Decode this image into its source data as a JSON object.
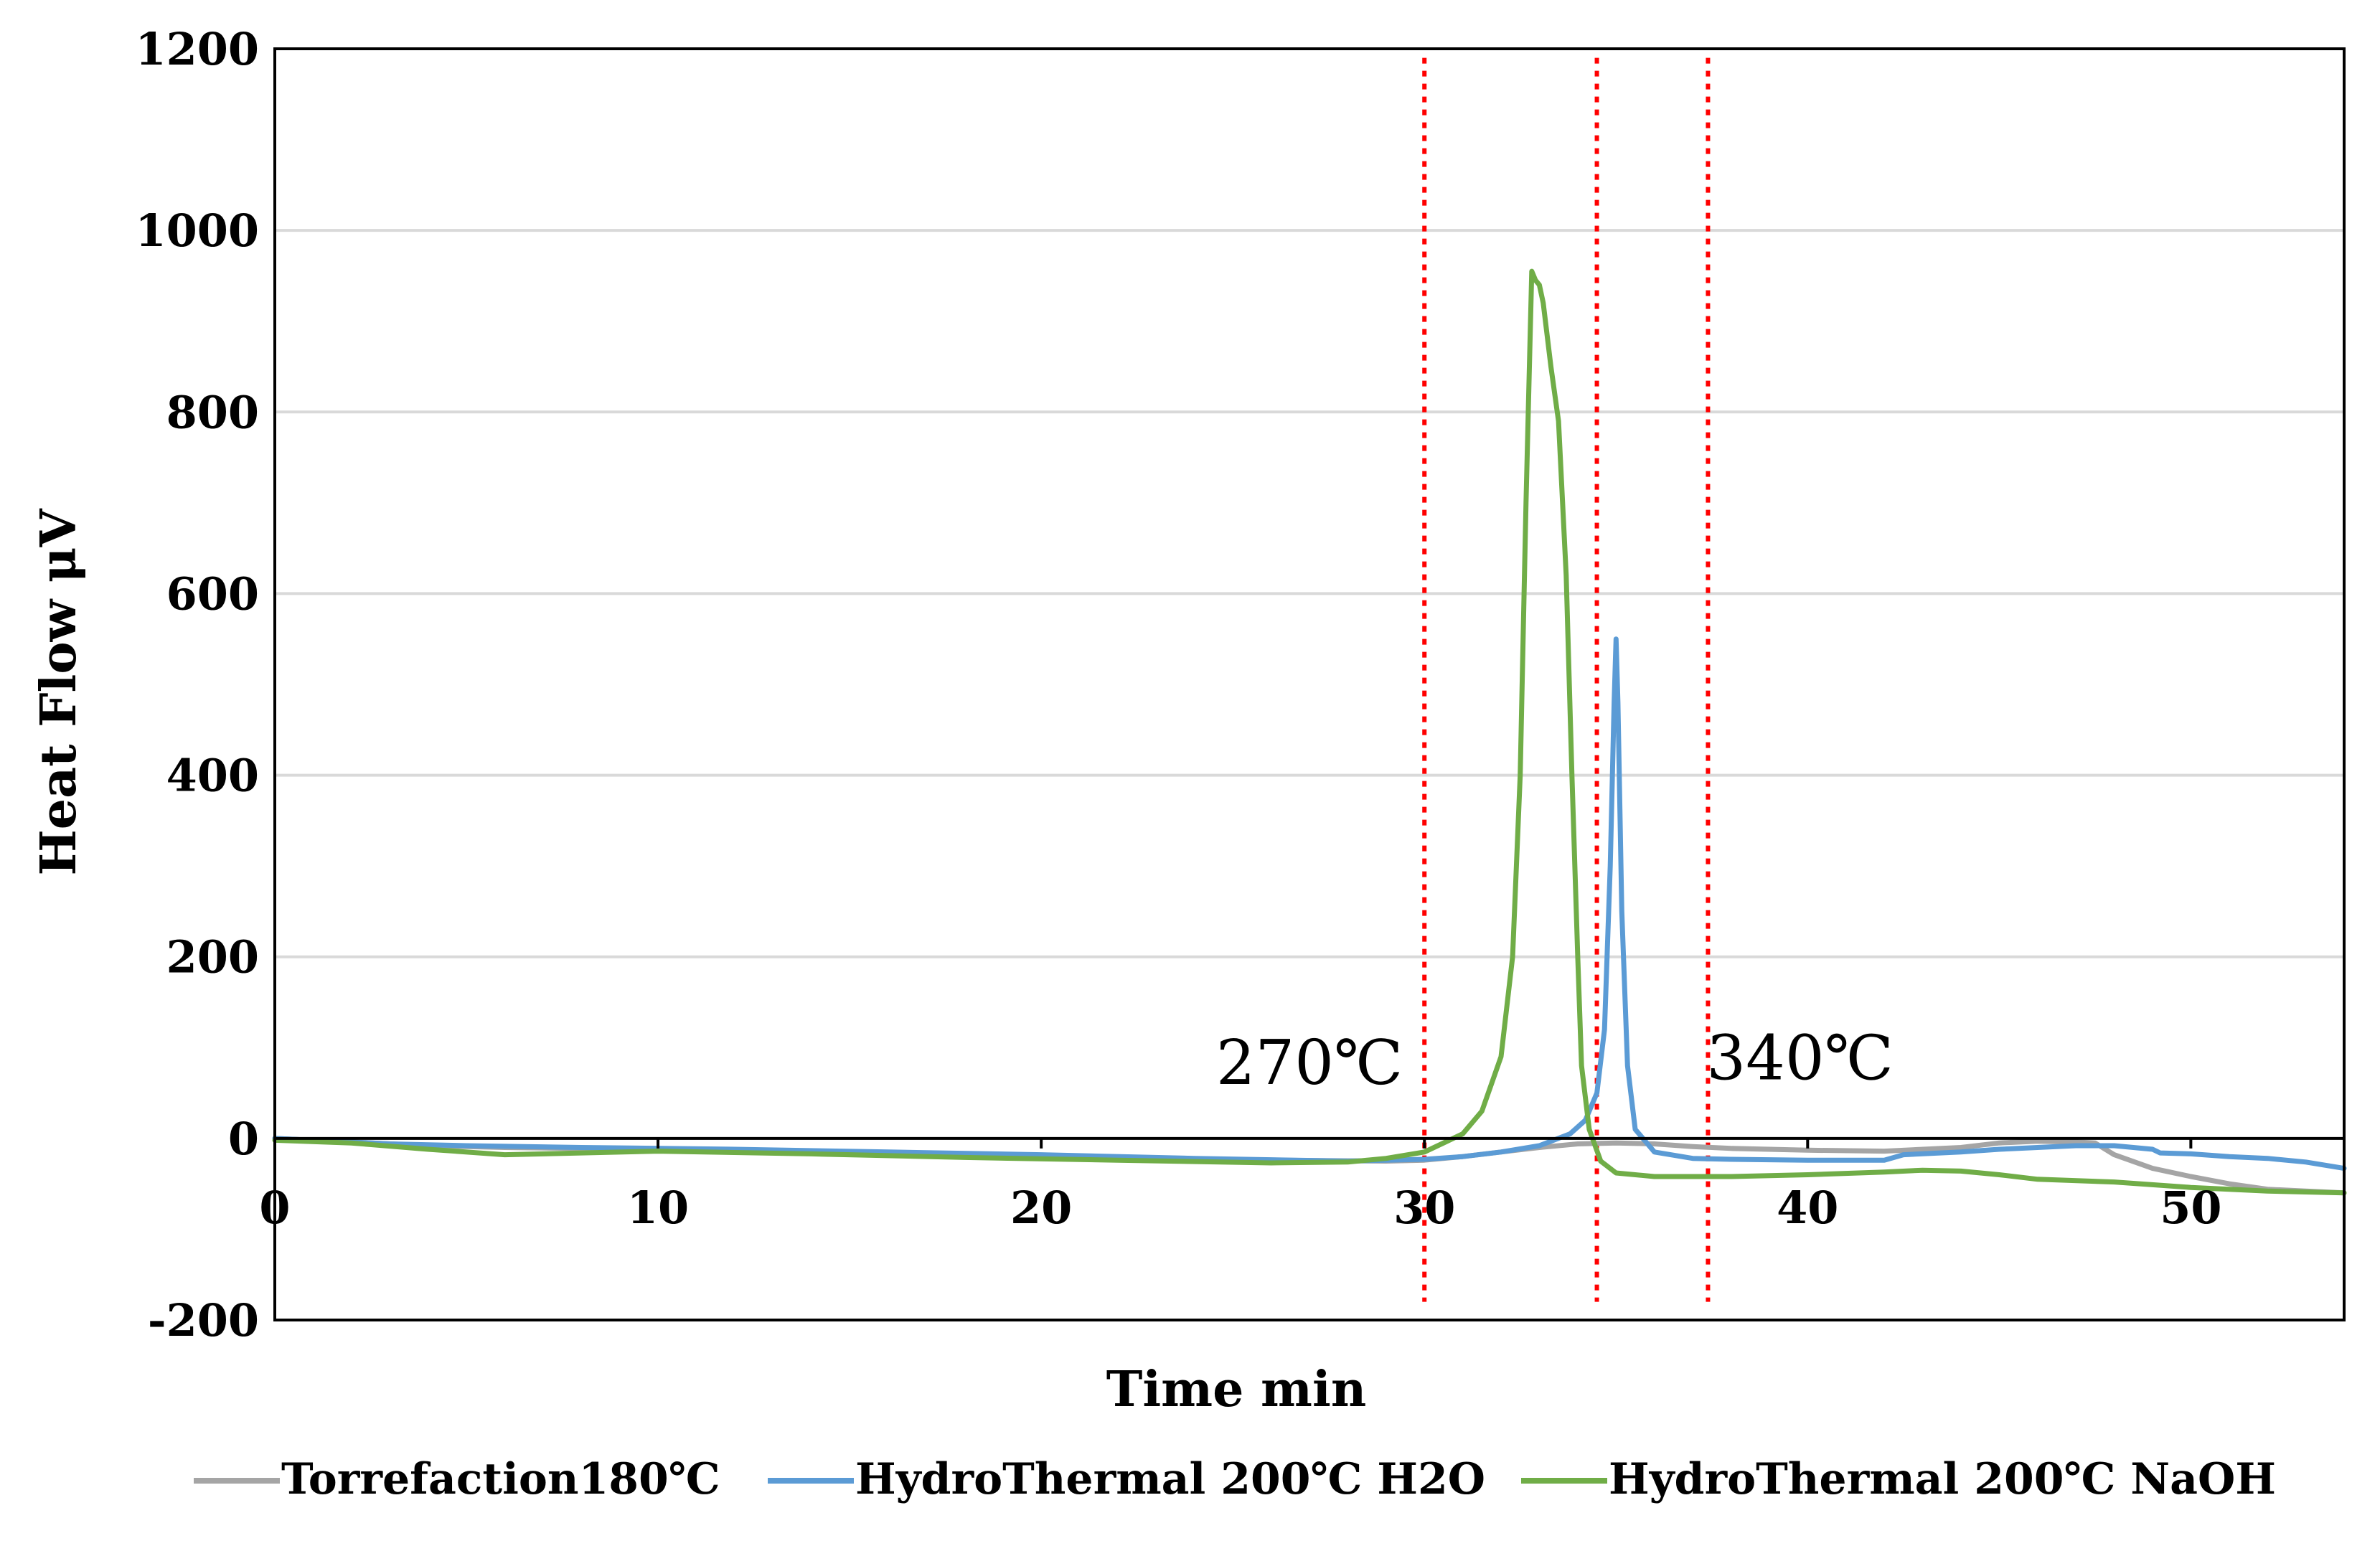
{
  "chart_data": {
    "type": "line",
    "title": "",
    "xlabel": "Time min",
    "ylabel": "Heat Flow μV",
    "xlim": [
      0,
      54
    ],
    "ylim": [
      -200,
      1200
    ],
    "x_ticks": [
      "0",
      "10",
      "20",
      "30",
      "40",
      "50"
    ],
    "y_ticks": [
      "-200",
      "0",
      "200",
      "400",
      "600",
      "800",
      "1000",
      "1200"
    ],
    "grid": "horizontal",
    "legend_position": "bottom",
    "series": [
      {
        "name": "Torrefaction180℃",
        "color": "#a5a5a5",
        "points": [
          [
            0,
            0
          ],
          [
            2,
            -4
          ],
          [
            4,
            -8
          ],
          [
            6,
            -10
          ],
          [
            8,
            -11
          ],
          [
            10,
            -12
          ],
          [
            14,
            -15
          ],
          [
            18,
            -18
          ],
          [
            22,
            -21
          ],
          [
            26,
            -24
          ],
          [
            29,
            -25
          ],
          [
            30,
            -24
          ],
          [
            31,
            -20
          ],
          [
            32,
            -15
          ],
          [
            33,
            -10
          ],
          [
            34,
            -6
          ],
          [
            35,
            -5
          ],
          [
            36,
            -6
          ],
          [
            37,
            -9
          ],
          [
            38,
            -11
          ],
          [
            40,
            -13
          ],
          [
            42,
            -14
          ],
          [
            44,
            -10
          ],
          [
            45,
            -5
          ],
          [
            46,
            -3
          ],
          [
            47,
            -4
          ],
          [
            47.5,
            -5
          ],
          [
            48,
            -18
          ],
          [
            49,
            -33
          ],
          [
            50,
            -42
          ],
          [
            51,
            -50
          ],
          [
            52,
            -56
          ],
          [
            53,
            -58
          ],
          [
            54,
            -60
          ]
        ]
      },
      {
        "name": "HydroThermal 200℃ H2O",
        "color": "#5b9bd5",
        "points": [
          [
            0,
            0
          ],
          [
            1,
            -2
          ],
          [
            2,
            -4
          ],
          [
            3,
            -6
          ],
          [
            5,
            -8
          ],
          [
            8,
            -10
          ],
          [
            12,
            -12
          ],
          [
            16,
            -15
          ],
          [
            20,
            -18
          ],
          [
            24,
            -22
          ],
          [
            28,
            -25
          ],
          [
            30,
            -23
          ],
          [
            31,
            -20
          ],
          [
            32,
            -15
          ],
          [
            33,
            -8
          ],
          [
            33.8,
            5
          ],
          [
            34.2,
            20
          ],
          [
            34.5,
            50
          ],
          [
            34.7,
            120
          ],
          [
            34.85,
            300
          ],
          [
            34.95,
            480
          ],
          [
            35.0,
            550
          ],
          [
            35.05,
            480
          ],
          [
            35.15,
            250
          ],
          [
            35.3,
            80
          ],
          [
            35.5,
            10
          ],
          [
            36,
            -15
          ],
          [
            37,
            -22
          ],
          [
            38,
            -23
          ],
          [
            40,
            -24
          ],
          [
            42,
            -24
          ],
          [
            42.5,
            -18
          ],
          [
            44,
            -15
          ],
          [
            45,
            -12
          ],
          [
            46,
            -10
          ],
          [
            47,
            -8
          ],
          [
            48,
            -8
          ],
          [
            48.5,
            -10
          ],
          [
            49,
            -12
          ],
          [
            49.2,
            -16
          ],
          [
            50,
            -17
          ],
          [
            51,
            -20
          ],
          [
            52,
            -22
          ],
          [
            53,
            -26
          ],
          [
            54,
            -33
          ]
        ]
      },
      {
        "name": "HydroThermal 200℃ NaOH",
        "color": "#70ad47",
        "points": [
          [
            0,
            -2
          ],
          [
            2,
            -5
          ],
          [
            4,
            -12
          ],
          [
            6,
            -18
          ],
          [
            8,
            -16
          ],
          [
            10,
            -14
          ],
          [
            14,
            -17
          ],
          [
            18,
            -21
          ],
          [
            22,
            -24
          ],
          [
            26,
            -27
          ],
          [
            28,
            -26
          ],
          [
            29,
            -22
          ],
          [
            30,
            -15
          ],
          [
            30.5,
            -5
          ],
          [
            31,
            5
          ],
          [
            31.5,
            30
          ],
          [
            32,
            90
          ],
          [
            32.3,
            200
          ],
          [
            32.5,
            400
          ],
          [
            32.65,
            700
          ],
          [
            32.8,
            955
          ],
          [
            32.9,
            945
          ],
          [
            33.0,
            940
          ],
          [
            33.1,
            920
          ],
          [
            33.3,
            850
          ],
          [
            33.5,
            790
          ],
          [
            33.7,
            620
          ],
          [
            33.85,
            400
          ],
          [
            34.0,
            200
          ],
          [
            34.1,
            80
          ],
          [
            34.3,
            10
          ],
          [
            34.6,
            -25
          ],
          [
            35,
            -38
          ],
          [
            36,
            -42
          ],
          [
            38,
            -42
          ],
          [
            40,
            -40
          ],
          [
            42,
            -37
          ],
          [
            43,
            -35
          ],
          [
            44,
            -36
          ],
          [
            45,
            -40
          ],
          [
            46,
            -45
          ],
          [
            48,
            -48
          ],
          [
            50,
            -54
          ],
          [
            52,
            -58
          ],
          [
            54,
            -60
          ]
        ]
      }
    ],
    "reference_lines": [
      {
        "x": 30,
        "color": "#ff0000",
        "style": "dotted"
      },
      {
        "x": 34.5,
        "color": "#ff0000",
        "style": "dotted"
      },
      {
        "x": 37.4,
        "color": "#ff0000",
        "style": "dotted"
      }
    ],
    "annotations": [
      {
        "text": "270℃",
        "x": 27,
        "y": 60
      },
      {
        "text": "340℃",
        "x": 39.8,
        "y": 65
      }
    ]
  }
}
